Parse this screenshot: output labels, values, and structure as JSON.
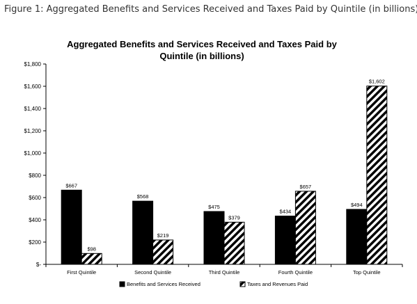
{
  "figure_caption": "Figure 1: Aggregated Benefits and Services Received and Taxes Paid by Quintile (in billions)",
  "chart_data": {
    "type": "bar",
    "title_line1": "Aggregated Benefits and Services Received and Taxes Paid by",
    "title_line2": "Quintile (in billions)",
    "categories": [
      "First Quintile",
      "Second Quintile",
      "Third Quintile",
      "Fourth Quintile",
      "Top Quintile"
    ],
    "series": [
      {
        "name": "Benefits and Services Received",
        "values": [
          667,
          568,
          475,
          434,
          494
        ],
        "labels": [
          "$667",
          "$568",
          "$475",
          "$434",
          "$494"
        ],
        "color": "#000000",
        "fill": "solid"
      },
      {
        "name": "Taxes and Revenues Paid",
        "values": [
          98,
          219,
          379,
          657,
          1602
        ],
        "labels": [
          "$98",
          "$219",
          "$379",
          "$657",
          "$1,602"
        ],
        "color": "#000000",
        "fill": "diagonal-stripes"
      }
    ],
    "ylim": [
      0,
      1800
    ],
    "yticks": [
      {
        "value": 0,
        "label": "$-"
      },
      {
        "value": 200,
        "label": "$200"
      },
      {
        "value": 400,
        "label": "$400"
      },
      {
        "value": 600,
        "label": "$600"
      },
      {
        "value": 800,
        "label": "$800"
      },
      {
        "value": 1000,
        "label": "$1,000"
      },
      {
        "value": 1200,
        "label": "$1,200"
      },
      {
        "value": 1400,
        "label": "$1,400"
      },
      {
        "value": 1600,
        "label": "$1,600"
      },
      {
        "value": 1800,
        "label": "$1,800"
      }
    ],
    "grid": false,
    "legend_position": "bottom"
  }
}
